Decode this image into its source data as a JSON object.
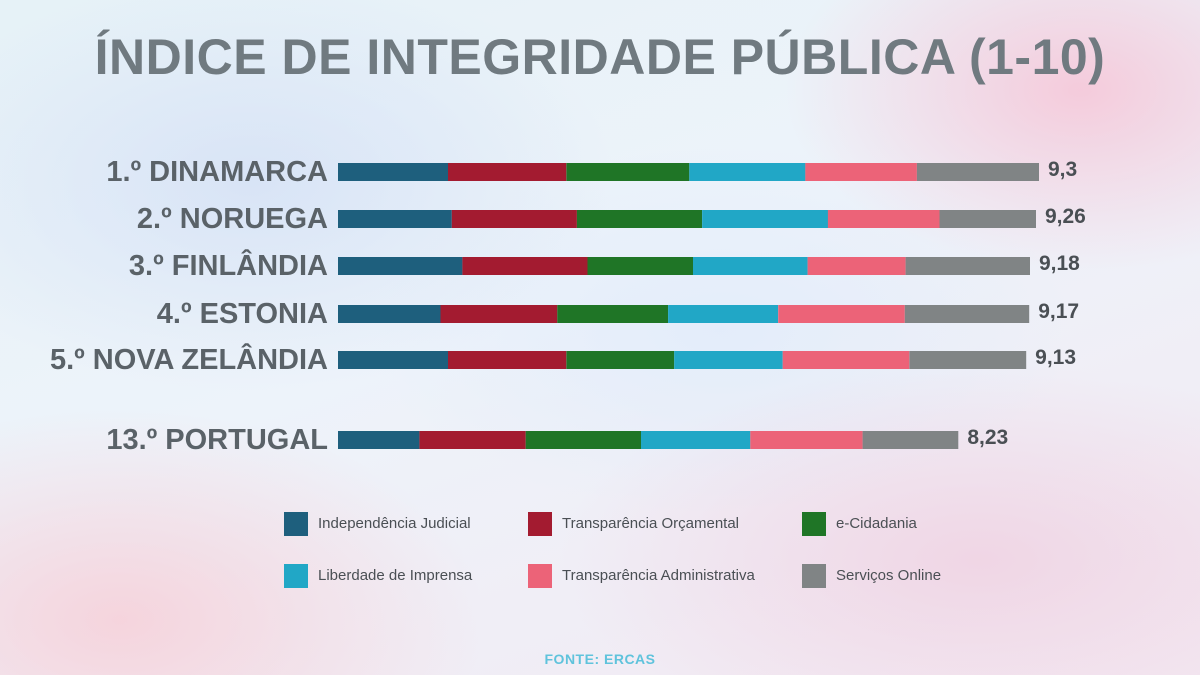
{
  "chart_data": {
    "type": "bar",
    "orientation": "horizontal",
    "stacked": true,
    "title": "ÍNDICE DE INTEGRIDADE PÚBLICA (1-10)",
    "source": "FONTE: ERCAS",
    "categories": [
      "1.º DINAMARCA",
      "2.º NORUEGA",
      "3.º FINLÂNDIA",
      "4.º ESTONIA",
      "5.º NOVA ZELÂNDIA",
      "13.º PORTUGAL"
    ],
    "totals": [
      "9,3",
      "9,26",
      "9,18",
      "9,17",
      "9,13",
      "8,23"
    ],
    "series": [
      {
        "name": "Independência Judicial",
        "color": "#1e5f7d",
        "values": [
          1.46,
          1.51,
          1.65,
          1.36,
          1.46,
          1.08
        ]
      },
      {
        "name": "Transparência Orçamental",
        "color": "#a31b30",
        "values": [
          1.57,
          1.66,
          1.66,
          1.55,
          1.57,
          1.41
        ]
      },
      {
        "name": "e-Cidadania",
        "color": "#1f7526",
        "values": [
          1.63,
          1.66,
          1.4,
          1.47,
          1.43,
          1.53
        ]
      },
      {
        "name": "Liberdade de Imprensa",
        "color": "#21a7c6",
        "values": [
          1.54,
          1.67,
          1.52,
          1.46,
          1.44,
          1.45
        ]
      },
      {
        "name": "Transparência Administrativa",
        "color": "#ec6378",
        "values": [
          1.48,
          1.48,
          1.3,
          1.68,
          1.68,
          1.49
        ]
      },
      {
        "name": "Serviços Online",
        "color": "#808485",
        "values": [
          1.62,
          1.28,
          1.65,
          1.65,
          1.55,
          1.27
        ]
      }
    ],
    "xlim": [
      0,
      9.3
    ],
    "grid": false,
    "legend_position": "bottom"
  }
}
